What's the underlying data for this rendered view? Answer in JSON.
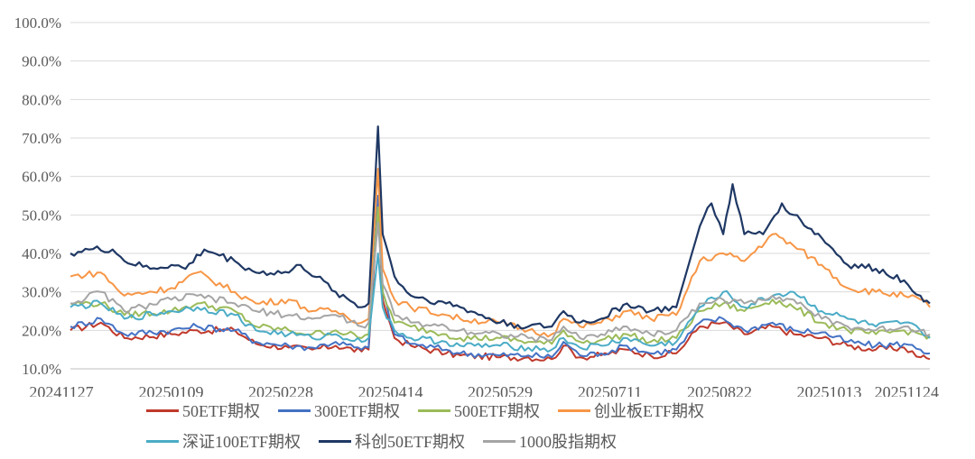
{
  "chart_data": {
    "type": "line",
    "title": "",
    "xlabel": "",
    "ylabel": "",
    "ylim": [
      0.1,
      1.0
    ],
    "y_ticks": [
      "10.0%",
      "20.0%",
      "30.0%",
      "40.0%",
      "50.0%",
      "60.0%",
      "70.0%",
      "80.0%",
      "90.0%",
      "100.0%"
    ],
    "y_tick_values": [
      0.1,
      0.2,
      0.3,
      0.4,
      0.5,
      0.6,
      0.7,
      0.8,
      0.9,
      1.0
    ],
    "x_ticks": [
      "20241127",
      "20250109",
      "20250228",
      "20250414",
      "20250529",
      "20250711",
      "20250822",
      "20251013",
      "20251124"
    ],
    "grid": "horizontal",
    "legend_position": "bottom",
    "series": [
      {
        "name": "50ETF期权",
        "color": "#c0392b",
        "points": [
          [
            "2024-11-27",
            0.2
          ],
          [
            "2024-12-10",
            0.22
          ],
          [
            "2024-12-20",
            0.18
          ],
          [
            "2025-01-09",
            0.19
          ],
          [
            "2025-01-20",
            0.2
          ],
          [
            "2025-02-05",
            0.2
          ],
          [
            "2025-02-14",
            0.165
          ],
          [
            "2025-02-28",
            0.155
          ],
          [
            "2025-03-10",
            0.15
          ],
          [
            "2025-03-20",
            0.16
          ],
          [
            "2025-03-31",
            0.145
          ],
          [
            "2025-04-03",
            0.15
          ],
          [
            "2025-04-07",
            0.52
          ],
          [
            "2025-04-09",
            0.28
          ],
          [
            "2025-04-14",
            0.18
          ],
          [
            "2025-04-21",
            0.16
          ],
          [
            "2025-05-06",
            0.14
          ],
          [
            "2025-05-12",
            0.135
          ],
          [
            "2025-05-29",
            0.13
          ],
          [
            "2025-06-10",
            0.13
          ],
          [
            "2025-06-20",
            0.125
          ],
          [
            "2025-06-25",
            0.16
          ],
          [
            "2025-07-02",
            0.13
          ],
          [
            "2025-07-11",
            0.135
          ],
          [
            "2025-07-22",
            0.15
          ],
          [
            "2025-08-01",
            0.135
          ],
          [
            "2025-08-12",
            0.14
          ],
          [
            "2025-08-22",
            0.21
          ],
          [
            "2025-09-01",
            0.22
          ],
          [
            "2025-09-10",
            0.19
          ],
          [
            "2025-09-22",
            0.21
          ],
          [
            "2025-10-01",
            0.19
          ],
          [
            "2025-10-13",
            0.18
          ],
          [
            "2025-10-24",
            0.16
          ],
          [
            "2025-11-05",
            0.15
          ],
          [
            "2025-11-17",
            0.155
          ],
          [
            "2025-11-24",
            0.13
          ],
          [
            "2025-11-28",
            0.125
          ]
        ]
      },
      {
        "name": "300ETF期权",
        "color": "#4472c4",
        "points": [
          [
            "2024-11-27",
            0.21
          ],
          [
            "2024-12-10",
            0.23
          ],
          [
            "2024-12-20",
            0.19
          ],
          [
            "2025-01-09",
            0.2
          ],
          [
            "2025-01-20",
            0.21
          ],
          [
            "2025-02-05",
            0.2
          ],
          [
            "2025-02-14",
            0.17
          ],
          [
            "2025-02-28",
            0.16
          ],
          [
            "2025-03-10",
            0.155
          ],
          [
            "2025-03-20",
            0.17
          ],
          [
            "2025-03-31",
            0.15
          ],
          [
            "2025-04-03",
            0.155
          ],
          [
            "2025-04-07",
            0.55
          ],
          [
            "2025-04-09",
            0.3
          ],
          [
            "2025-04-14",
            0.19
          ],
          [
            "2025-04-21",
            0.165
          ],
          [
            "2025-05-06",
            0.15
          ],
          [
            "2025-05-12",
            0.14
          ],
          [
            "2025-05-29",
            0.135
          ],
          [
            "2025-06-10",
            0.135
          ],
          [
            "2025-06-20",
            0.13
          ],
          [
            "2025-06-25",
            0.17
          ],
          [
            "2025-07-02",
            0.135
          ],
          [
            "2025-07-11",
            0.14
          ],
          [
            "2025-07-22",
            0.16
          ],
          [
            "2025-08-01",
            0.14
          ],
          [
            "2025-08-12",
            0.15
          ],
          [
            "2025-08-22",
            0.22
          ],
          [
            "2025-09-01",
            0.23
          ],
          [
            "2025-09-10",
            0.2
          ],
          [
            "2025-09-22",
            0.22
          ],
          [
            "2025-10-01",
            0.2
          ],
          [
            "2025-10-13",
            0.195
          ],
          [
            "2025-10-24",
            0.17
          ],
          [
            "2025-11-05",
            0.16
          ],
          [
            "2025-11-17",
            0.165
          ],
          [
            "2025-11-24",
            0.15
          ],
          [
            "2025-11-28",
            0.14
          ]
        ]
      },
      {
        "name": "500ETF期权",
        "color": "#9bbb59",
        "points": [
          [
            "2024-11-27",
            0.27
          ],
          [
            "2024-12-10",
            0.27
          ],
          [
            "2024-12-20",
            0.24
          ],
          [
            "2025-01-09",
            0.25
          ],
          [
            "2025-01-20",
            0.27
          ],
          [
            "2025-02-05",
            0.25
          ],
          [
            "2025-02-14",
            0.21
          ],
          [
            "2025-02-28",
            0.2
          ],
          [
            "2025-03-10",
            0.19
          ],
          [
            "2025-03-20",
            0.2
          ],
          [
            "2025-03-31",
            0.18
          ],
          [
            "2025-04-03",
            0.19
          ],
          [
            "2025-04-07",
            0.52
          ],
          [
            "2025-04-09",
            0.3
          ],
          [
            "2025-04-14",
            0.22
          ],
          [
            "2025-04-21",
            0.21
          ],
          [
            "2025-05-06",
            0.19
          ],
          [
            "2025-05-12",
            0.18
          ],
          [
            "2025-05-29",
            0.18
          ],
          [
            "2025-06-10",
            0.17
          ],
          [
            "2025-06-20",
            0.165
          ],
          [
            "2025-06-25",
            0.2
          ],
          [
            "2025-07-02",
            0.17
          ],
          [
            "2025-07-11",
            0.175
          ],
          [
            "2025-07-22",
            0.19
          ],
          [
            "2025-08-01",
            0.17
          ],
          [
            "2025-08-12",
            0.18
          ],
          [
            "2025-08-22",
            0.25
          ],
          [
            "2025-09-01",
            0.27
          ],
          [
            "2025-09-10",
            0.25
          ],
          [
            "2025-09-22",
            0.28
          ],
          [
            "2025-10-01",
            0.26
          ],
          [
            "2025-10-13",
            0.22
          ],
          [
            "2025-10-24",
            0.2
          ],
          [
            "2025-11-05",
            0.19
          ],
          [
            "2025-11-17",
            0.2
          ],
          [
            "2025-11-24",
            0.19
          ],
          [
            "2025-11-28",
            0.185
          ]
        ]
      },
      {
        "name": "创业板ETF期权",
        "color": "#f79646",
        "points": [
          [
            "2024-11-27",
            0.34
          ],
          [
            "2024-12-10",
            0.35
          ],
          [
            "2024-12-20",
            0.29
          ],
          [
            "2025-01-09",
            0.31
          ],
          [
            "2025-01-20",
            0.35
          ],
          [
            "2025-02-05",
            0.3
          ],
          [
            "2025-02-14",
            0.27
          ],
          [
            "2025-02-28",
            0.28
          ],
          [
            "2025-03-10",
            0.25
          ],
          [
            "2025-03-20",
            0.25
          ],
          [
            "2025-03-31",
            0.22
          ],
          [
            "2025-04-03",
            0.23
          ],
          [
            "2025-04-07",
            0.62
          ],
          [
            "2025-04-09",
            0.36
          ],
          [
            "2025-04-14",
            0.28
          ],
          [
            "2025-04-21",
            0.26
          ],
          [
            "2025-05-06",
            0.24
          ],
          [
            "2025-05-12",
            0.23
          ],
          [
            "2025-05-29",
            0.22
          ],
          [
            "2025-06-10",
            0.2
          ],
          [
            "2025-06-20",
            0.19
          ],
          [
            "2025-06-25",
            0.23
          ],
          [
            "2025-07-02",
            0.21
          ],
          [
            "2025-07-11",
            0.22
          ],
          [
            "2025-07-22",
            0.25
          ],
          [
            "2025-08-01",
            0.23
          ],
          [
            "2025-08-12",
            0.24
          ],
          [
            "2025-08-22",
            0.38
          ],
          [
            "2025-09-01",
            0.4
          ],
          [
            "2025-09-10",
            0.38
          ],
          [
            "2025-09-22",
            0.45
          ],
          [
            "2025-10-01",
            0.42
          ],
          [
            "2025-10-13",
            0.37
          ],
          [
            "2025-10-24",
            0.31
          ],
          [
            "2025-11-05",
            0.3
          ],
          [
            "2025-11-17",
            0.29
          ],
          [
            "2025-11-24",
            0.28
          ],
          [
            "2025-11-28",
            0.26
          ]
        ]
      },
      {
        "name": "深证100ETF期权",
        "color": "#4bacc6",
        "points": [
          [
            "2024-11-27",
            0.26
          ],
          [
            "2024-12-10",
            0.27
          ],
          [
            "2024-12-20",
            0.23
          ],
          [
            "2025-01-09",
            0.25
          ],
          [
            "2025-01-20",
            0.26
          ],
          [
            "2025-02-05",
            0.24
          ],
          [
            "2025-02-14",
            0.2
          ],
          [
            "2025-02-28",
            0.19
          ],
          [
            "2025-03-10",
            0.18
          ],
          [
            "2025-03-20",
            0.19
          ],
          [
            "2025-03-31",
            0.17
          ],
          [
            "2025-04-03",
            0.18
          ],
          [
            "2025-04-07",
            0.4
          ],
          [
            "2025-04-09",
            0.26
          ],
          [
            "2025-04-14",
            0.2
          ],
          [
            "2025-04-21",
            0.18
          ],
          [
            "2025-05-06",
            0.17
          ],
          [
            "2025-05-12",
            0.16
          ],
          [
            "2025-05-29",
            0.16
          ],
          [
            "2025-06-10",
            0.155
          ],
          [
            "2025-06-20",
            0.15
          ],
          [
            "2025-06-25",
            0.18
          ],
          [
            "2025-07-02",
            0.155
          ],
          [
            "2025-07-11",
            0.16
          ],
          [
            "2025-07-22",
            0.18
          ],
          [
            "2025-08-01",
            0.16
          ],
          [
            "2025-08-12",
            0.17
          ],
          [
            "2025-08-22",
            0.26
          ],
          [
            "2025-09-01",
            0.3
          ],
          [
            "2025-09-10",
            0.26
          ],
          [
            "2025-09-22",
            0.29
          ],
          [
            "2025-10-01",
            0.3
          ],
          [
            "2025-10-13",
            0.25
          ],
          [
            "2025-10-24",
            0.23
          ],
          [
            "2025-11-05",
            0.21
          ],
          [
            "2025-11-17",
            0.22
          ],
          [
            "2025-11-24",
            0.2
          ],
          [
            "2025-11-28",
            0.18
          ]
        ]
      },
      {
        "name": "科创50ETF期权",
        "color": "#1f3864",
        "points": [
          [
            "2024-11-27",
            0.4
          ],
          [
            "2024-12-05",
            0.41
          ],
          [
            "2024-12-15",
            0.41
          ],
          [
            "2024-12-20",
            0.38
          ],
          [
            "2024-12-31",
            0.36
          ],
          [
            "2025-01-09",
            0.37
          ],
          [
            "2025-01-15",
            0.36
          ],
          [
            "2025-01-23",
            0.41
          ],
          [
            "2025-02-05",
            0.38
          ],
          [
            "2025-02-14",
            0.35
          ],
          [
            "2025-02-28",
            0.35
          ],
          [
            "2025-03-05",
            0.37
          ],
          [
            "2025-03-20",
            0.3
          ],
          [
            "2025-03-31",
            0.26
          ],
          [
            "2025-04-03",
            0.27
          ],
          [
            "2025-04-07",
            0.73
          ],
          [
            "2025-04-09",
            0.45
          ],
          [
            "2025-04-14",
            0.34
          ],
          [
            "2025-04-21",
            0.29
          ],
          [
            "2025-05-06",
            0.27
          ],
          [
            "2025-05-12",
            0.26
          ],
          [
            "2025-05-29",
            0.22
          ],
          [
            "2025-06-10",
            0.21
          ],
          [
            "2025-06-20",
            0.21
          ],
          [
            "2025-06-25",
            0.25
          ],
          [
            "2025-07-02",
            0.22
          ],
          [
            "2025-07-11",
            0.23
          ],
          [
            "2025-07-22",
            0.27
          ],
          [
            "2025-08-01",
            0.25
          ],
          [
            "2025-08-12",
            0.26
          ],
          [
            "2025-08-22",
            0.47
          ],
          [
            "2025-08-27",
            0.53
          ],
          [
            "2025-09-01",
            0.45
          ],
          [
            "2025-09-05",
            0.58
          ],
          [
            "2025-09-10",
            0.45
          ],
          [
            "2025-09-18",
            0.45
          ],
          [
            "2025-09-26",
            0.53
          ],
          [
            "2025-10-01",
            0.5
          ],
          [
            "2025-10-13",
            0.44
          ],
          [
            "2025-10-24",
            0.37
          ],
          [
            "2025-11-05",
            0.36
          ],
          [
            "2025-11-17",
            0.33
          ],
          [
            "2025-11-24",
            0.29
          ],
          [
            "2025-11-28",
            0.27
          ]
        ]
      },
      {
        "name": "1000股指期权",
        "color": "#a5a5a5",
        "points": [
          [
            "2024-11-27",
            0.27
          ],
          [
            "2024-12-10",
            0.3
          ],
          [
            "2024-12-20",
            0.25
          ],
          [
            "2025-01-09",
            0.28
          ],
          [
            "2025-01-20",
            0.29
          ],
          [
            "2025-02-05",
            0.27
          ],
          [
            "2025-02-14",
            0.25
          ],
          [
            "2025-02-28",
            0.24
          ],
          [
            "2025-03-10",
            0.23
          ],
          [
            "2025-03-20",
            0.24
          ],
          [
            "2025-03-31",
            0.21
          ],
          [
            "2025-04-03",
            0.22
          ],
          [
            "2025-04-07",
            0.48
          ],
          [
            "2025-04-09",
            0.32
          ],
          [
            "2025-04-14",
            0.24
          ],
          [
            "2025-04-21",
            0.22
          ],
          [
            "2025-05-06",
            0.21
          ],
          [
            "2025-05-12",
            0.2
          ],
          [
            "2025-05-29",
            0.19
          ],
          [
            "2025-06-10",
            0.18
          ],
          [
            "2025-06-20",
            0.175
          ],
          [
            "2025-06-25",
            0.21
          ],
          [
            "2025-07-02",
            0.18
          ],
          [
            "2025-07-11",
            0.19
          ],
          [
            "2025-07-22",
            0.21
          ],
          [
            "2025-08-01",
            0.19
          ],
          [
            "2025-08-12",
            0.2
          ],
          [
            "2025-08-22",
            0.27
          ],
          [
            "2025-09-01",
            0.28
          ],
          [
            "2025-09-10",
            0.27
          ],
          [
            "2025-09-22",
            0.29
          ],
          [
            "2025-10-01",
            0.28
          ],
          [
            "2025-10-13",
            0.23
          ],
          [
            "2025-10-24",
            0.21
          ],
          [
            "2025-11-05",
            0.2
          ],
          [
            "2025-11-17",
            0.21
          ],
          [
            "2025-11-24",
            0.2
          ],
          [
            "2025-11-28",
            0.19
          ]
        ]
      }
    ]
  }
}
